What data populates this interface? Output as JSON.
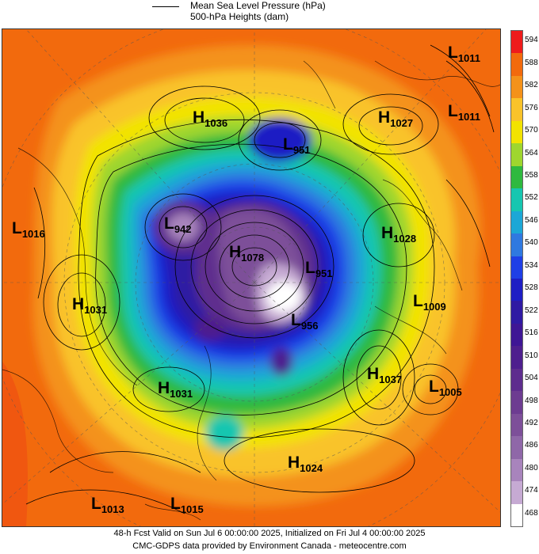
{
  "legend": {
    "line1": "Mean Sea Level Pressure (hPa)",
    "line2": "500-hPa Heights (dam)"
  },
  "colorbar": {
    "labels": [
      "594",
      "588",
      "582",
      "576",
      "570",
      "564",
      "558",
      "552",
      "546",
      "540",
      "534",
      "528",
      "522",
      "516",
      "510",
      "504",
      "498",
      "492",
      "486",
      "480",
      "474",
      "468"
    ],
    "colors": [
      "#ee1c1c",
      "#f26a0d",
      "#f4921a",
      "#f9c32a",
      "#f2e300",
      "#9fd62e",
      "#2fb93f",
      "#16c6b0",
      "#1ca7d6",
      "#2f79e0",
      "#1f3fe6",
      "#1e1ec4",
      "#2f1aa3",
      "#3e1695",
      "#4e1f8e",
      "#5e2d8e",
      "#6d3c91",
      "#7d4f99",
      "#8f67a8",
      "#a884bc",
      "#c6aad3",
      "#ffffff"
    ]
  },
  "pressure_systems": [
    {
      "type": "L",
      "value": "1011"
    },
    {
      "type": "L",
      "value": "1011"
    },
    {
      "type": "H",
      "value": "1036"
    },
    {
      "type": "H",
      "value": "1027"
    },
    {
      "type": "L",
      "value": "951"
    },
    {
      "type": "L",
      "value": "1016"
    },
    {
      "type": "L",
      "value": "942"
    },
    {
      "type": "H",
      "value": "1078"
    },
    {
      "type": "H",
      "value": "1028"
    },
    {
      "type": "L",
      "value": "951"
    },
    {
      "type": "H",
      "value": "1031"
    },
    {
      "type": "L",
      "value": "1009"
    },
    {
      "type": "L",
      "value": "956"
    },
    {
      "type": "H",
      "value": "1037"
    },
    {
      "type": "H",
      "value": "1031"
    },
    {
      "type": "L",
      "value": "1005"
    },
    {
      "type": "H",
      "value": "1024"
    },
    {
      "type": "L",
      "value": "1013"
    },
    {
      "type": "L",
      "value": "1015"
    }
  ],
  "footer": {
    "line1": "48-h Fcst Valid on Sun Jul  6 00:00:00 2025, Initialized on Fri Jul  4 00:00:00 2025",
    "line2": "CMC-GDPS data provided by Environment Canada - meteocentre.com"
  }
}
